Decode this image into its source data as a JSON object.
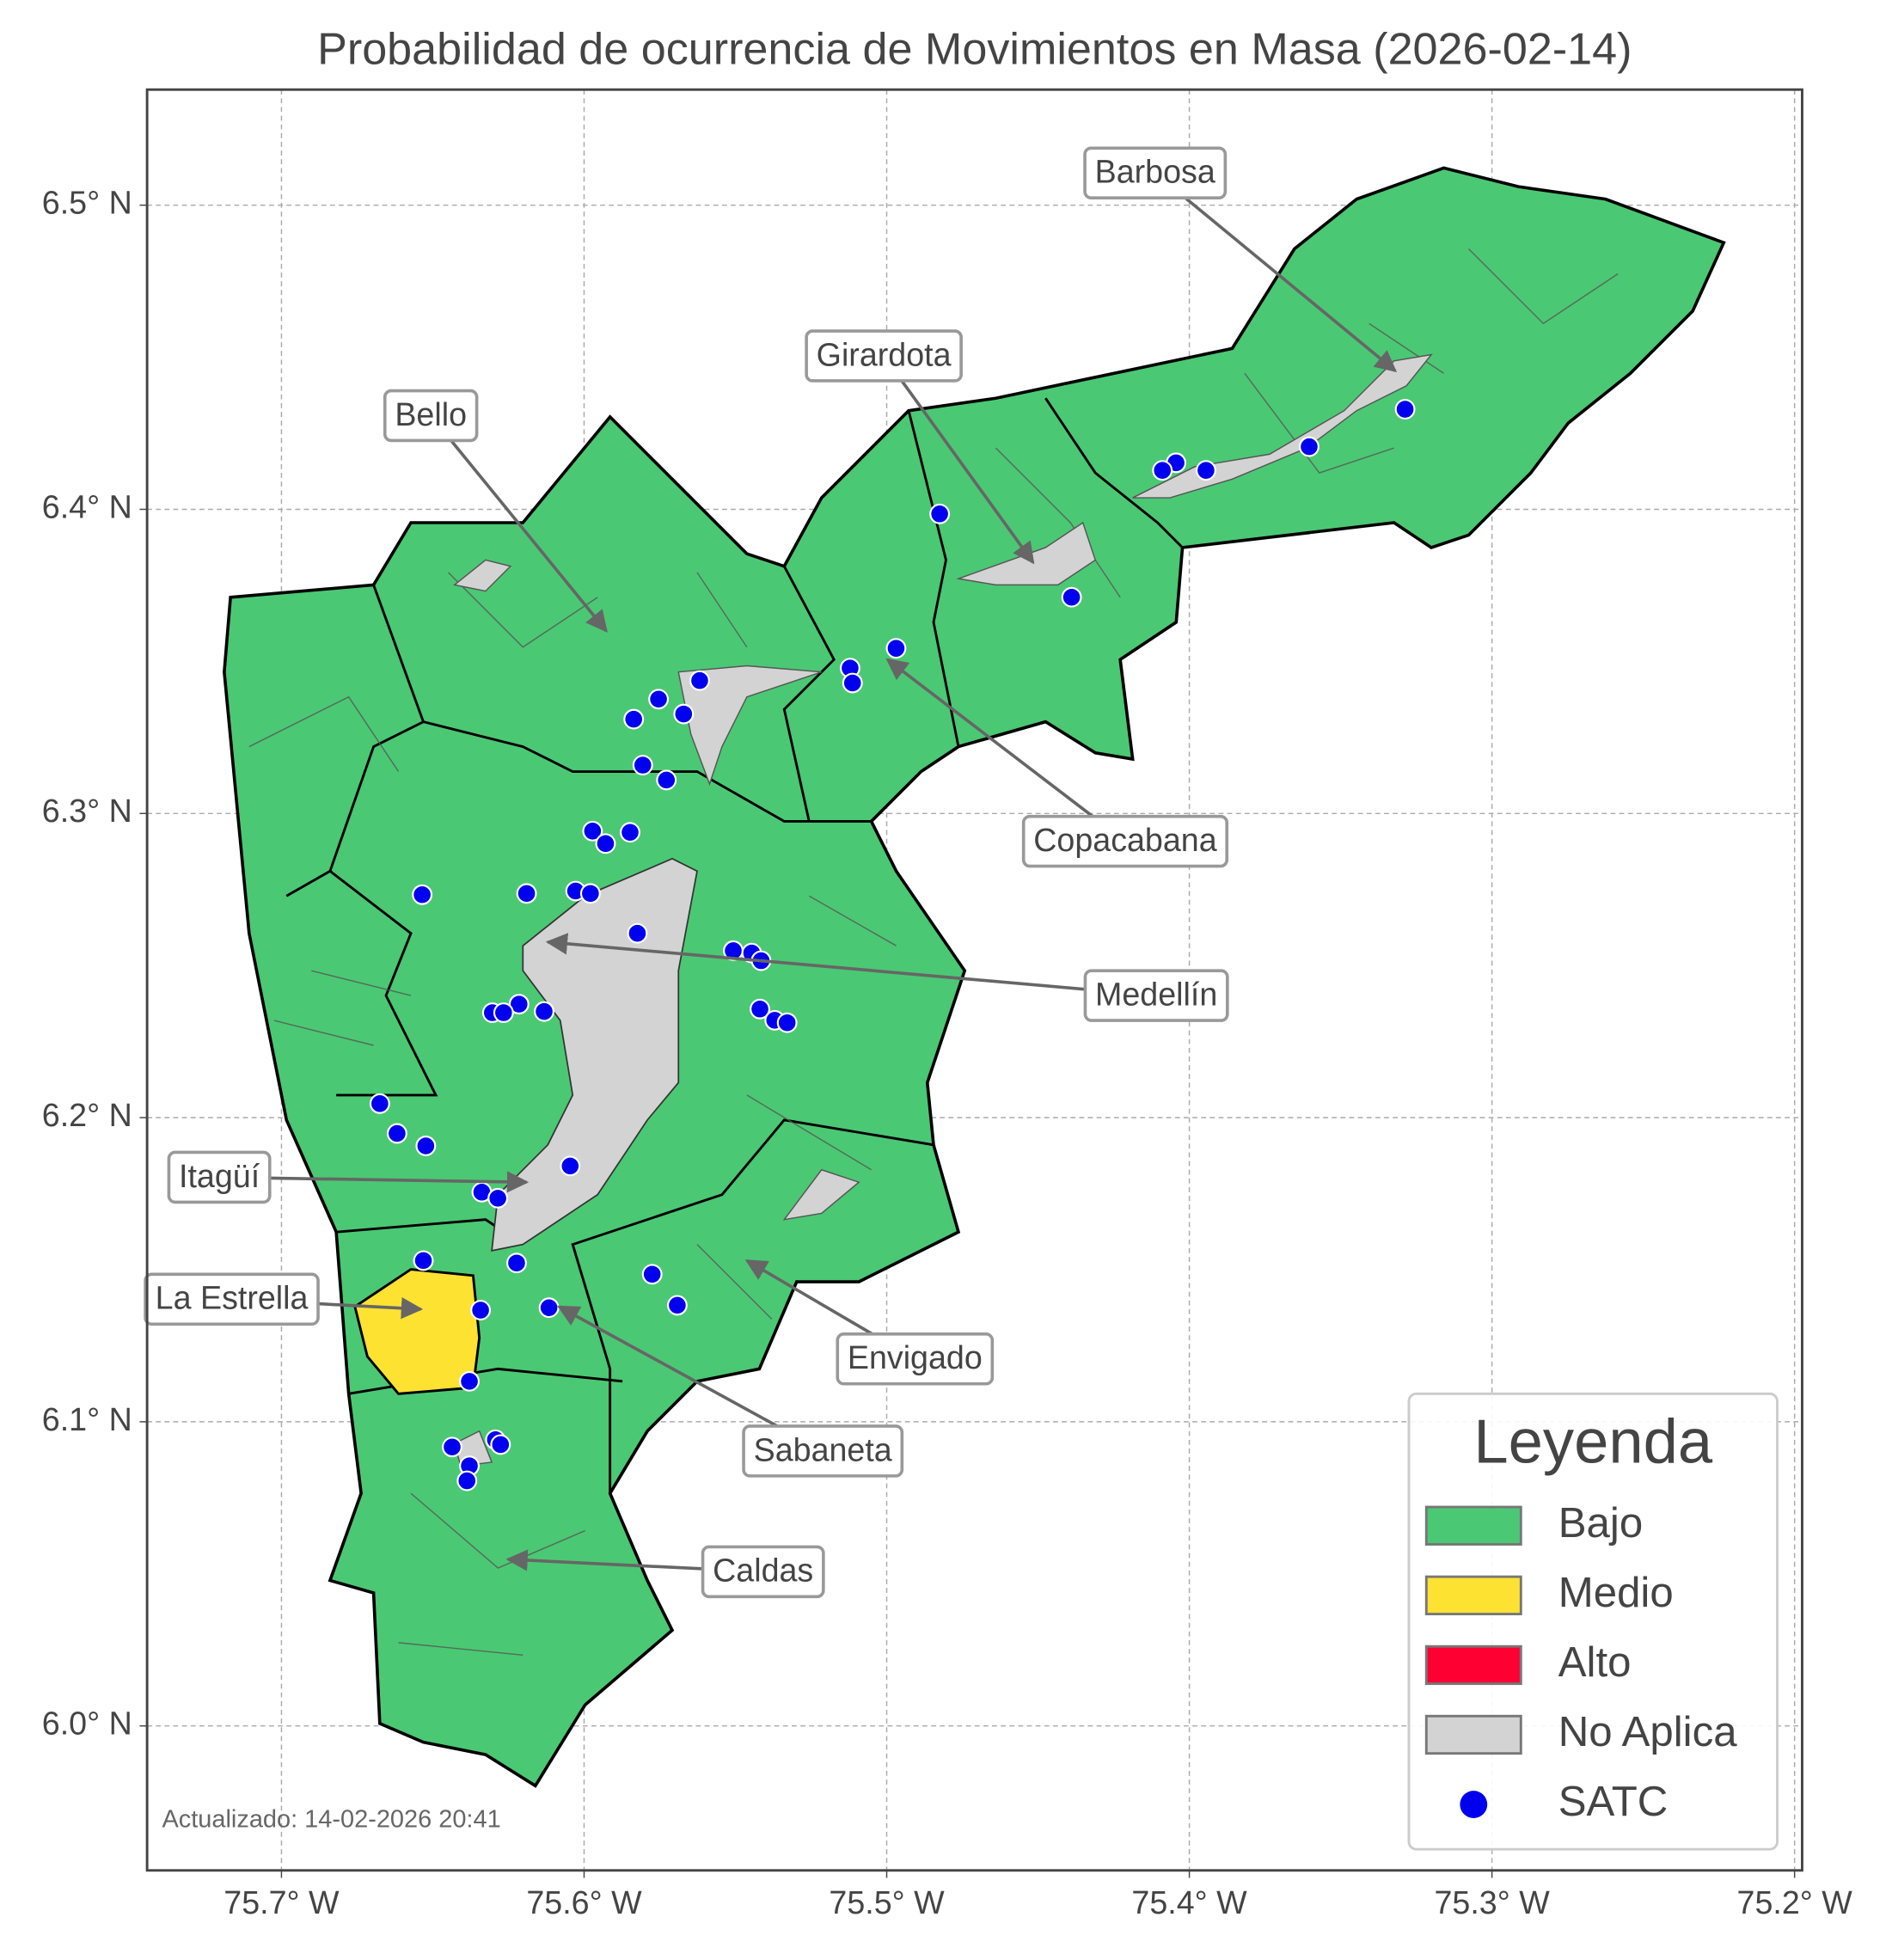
{
  "map": {
    "title": "Probabilidad de ocurrencia de Movimientos en Masa (2026-02-14)",
    "xlim": [
      -75.7444,
      -75.1975
    ],
    "ylim": [
      5.9525,
      6.538
    ],
    "xticks": [
      {
        "value": -75.7,
        "label": "75.7° W"
      },
      {
        "value": -75.6,
        "label": "75.6° W"
      },
      {
        "value": -75.5,
        "label": "75.5° W"
      },
      {
        "value": -75.4,
        "label": "75.4° W"
      },
      {
        "value": -75.3,
        "label": "75.3° W"
      },
      {
        "value": -75.2,
        "label": "75.2° W"
      }
    ],
    "yticks": [
      {
        "value": 6.0,
        "label": "6.0° N"
      },
      {
        "value": 6.1,
        "label": "6.1° N"
      },
      {
        "value": 6.2,
        "label": "6.2° N"
      },
      {
        "value": 6.3,
        "label": "6.3° N"
      },
      {
        "value": 6.4,
        "label": "6.4° N"
      },
      {
        "value": 6.5,
        "label": "6.5° N"
      }
    ],
    "grid": true,
    "annotations": [
      "Barbosa",
      "Girardota",
      "Bello",
      "Copacabana",
      "Medellín",
      "Itagüí",
      "La Estrella",
      "Envigado",
      "Sabaneta",
      "Caldas"
    ],
    "legend": {
      "title": "Leyenda",
      "corner": "lower right",
      "entries": [
        {
          "label": "Bajo",
          "color": "#4bc874"
        },
        {
          "label": "Medio",
          "color": "#fde232"
        },
        {
          "label": "Alto",
          "color": "#ff0033"
        },
        {
          "label": "No Aplica",
          "color": "#d3d3d3"
        },
        {
          "label": "SATC",
          "color": "#0000ee"
        }
      ]
    },
    "satc_points": {
      "lon": [
        -75.3287,
        -75.3604,
        -75.3945,
        -75.4044,
        -75.4089,
        -75.4825,
        -75.4389,
        -75.4969,
        -75.5121,
        -75.5113,
        -75.5618,
        -75.5671,
        -75.5754,
        -75.5836,
        -75.5806,
        -75.5728,
        -75.5972,
        -75.5848,
        -75.5929,
        -75.6535,
        -75.619,
        -75.6028,
        -75.5979,
        -75.5824,
        -75.5507,
        -75.5446,
        -75.5415,
        -75.5419,
        -75.537,
        -75.5329,
        -75.6215,
        -75.6303,
        -75.6266,
        -75.6132,
        -75.6675,
        -75.6618,
        -75.6523,
        -75.6046,
        -75.6338,
        -75.6285,
        -75.6531,
        -75.6223,
        -75.5775,
        -75.5692,
        -75.6116,
        -75.6342,
        -75.6379,
        -75.6436,
        -75.6293,
        -75.6276,
        -75.6379,
        -75.6387
      ],
      "lat": [
        6.4329,
        6.4206,
        6.4128,
        6.4153,
        6.4128,
        6.3985,
        6.3711,
        6.3543,
        6.3478,
        6.3429,
        6.3437,
        6.3327,
        6.3376,
        6.331,
        6.3159,
        6.311,
        6.2942,
        6.2938,
        6.2901,
        6.2733,
        6.2737,
        6.2745,
        6.2737,
        6.2606,
        6.2549,
        6.2541,
        6.2516,
        6.2357,
        6.232,
        6.2312,
        6.2373,
        6.2345,
        6.2345,
        6.2349,
        6.2046,
        6.1948,
        6.1907,
        6.1841,
        6.1755,
        6.1735,
        6.153,
        6.1522,
        6.1485,
        6.1383,
        6.1375,
        6.1367,
        6.1133,
        6.0917,
        6.0941,
        6.0925,
        6.0855,
        6.0806
      ]
    },
    "footnote": "Actualizado: 14-02-2026 20:41"
  }
}
